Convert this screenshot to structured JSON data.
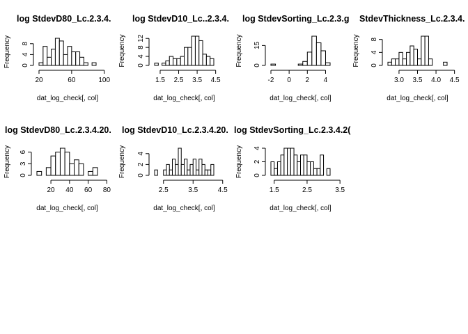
{
  "chart_data": [
    {
      "type": "bar",
      "title": "log StdevD80_Lc.2.3.4.",
      "xlabel": "dat_log_check[, col]",
      "ylabel": "Frequency",
      "bin_start": 20,
      "bin_width": 5,
      "values": [
        1,
        7,
        3,
        6,
        10,
        9,
        4,
        7,
        5,
        5,
        3,
        1,
        0,
        1
      ],
      "xticks": [
        "20",
        "60",
        "100"
      ],
      "xtick_vals": [
        20,
        60,
        100
      ],
      "yticks": [
        "0",
        "4",
        "8"
      ],
      "ytick_vals": [
        0,
        4,
        8
      ],
      "ylim": [
        0,
        10
      ]
    },
    {
      "type": "bar",
      "title": "log StdevD10_Lc..2.3.4.",
      "xlabel": "dat_log_check[, col]",
      "ylabel": "Frequency",
      "bin_start": 1.2,
      "bin_width": 0.2,
      "values": [
        1,
        0,
        1,
        2,
        4,
        3,
        3,
        4,
        8,
        8,
        13,
        13,
        11,
        5,
        4,
        3
      ],
      "xticks": [
        "1.5",
        "2.5",
        "3.5",
        "4.5"
      ],
      "xtick_vals": [
        1.5,
        2.5,
        3.5,
        4.5
      ],
      "yticks": [
        "0",
        "4",
        "8",
        "12"
      ],
      "ytick_vals": [
        0,
        4,
        8,
        12
      ],
      "ylim": [
        0,
        13
      ]
    },
    {
      "type": "bar",
      "title": "log StdevSorting_Lc.2.3.g",
      "xlabel": "dat_log_check[, col]",
      "ylabel": "Frequency",
      "bin_start": -2,
      "bin_width": 0.5,
      "values": [
        1,
        0,
        0,
        0,
        0,
        0,
        1,
        3,
        10,
        22,
        17,
        11,
        2
      ],
      "xticks": [
        "-2",
        "0",
        "2",
        "4"
      ],
      "xtick_vals": [
        -2,
        0,
        2,
        4
      ],
      "yticks": [
        "0",
        "15"
      ],
      "ytick_vals": [
        0,
        15
      ],
      "ylim": [
        0,
        22
      ]
    },
    {
      "type": "bar",
      "title": "StdevThickness_Lc.2.3.4.",
      "xlabel": "dat_log_check[, col]",
      "ylabel": "Frequency",
      "bin_start": 2.7,
      "bin_width": 0.1,
      "values": [
        1,
        2,
        2,
        4,
        2,
        4,
        6,
        5,
        2,
        9,
        9,
        2,
        0,
        0,
        0,
        1
      ],
      "xticks": [
        "3.0",
        "3.5",
        "4.0",
        "4.5"
      ],
      "xtick_vals": [
        3.0,
        3.5,
        4.0,
        4.5
      ],
      "yticks": [
        "0",
        "4",
        "8"
      ],
      "ytick_vals": [
        0,
        4,
        8
      ],
      "ylim": [
        0,
        9
      ]
    },
    {
      "type": "bar",
      "title": "log StdevD80_Lc.2.3.4.20.",
      "xlabel": "dat_log_check[, col]",
      "ylabel": "Frequency",
      "bin_start": 5,
      "bin_width": 5,
      "values": [
        1,
        0,
        2,
        5,
        6,
        7,
        6,
        3,
        4,
        3,
        0,
        1,
        2
      ],
      "xticks": [
        "20",
        "40",
        "60",
        "80"
      ],
      "xtick_vals": [
        20,
        40,
        60,
        80
      ],
      "yticks": [
        "0",
        "3",
        "6"
      ],
      "ytick_vals": [
        0,
        3,
        6
      ],
      "ylim": [
        0,
        7
      ]
    },
    {
      "type": "bar",
      "title": "log StdevD10_Lc.2.3.4.20.",
      "xlabel": "dat_log_check[, col]",
      "ylabel": "Frequency",
      "bin_start": 2.2,
      "bin_width": 0.1,
      "values": [
        1,
        0,
        0,
        1,
        2,
        1,
        3,
        2,
        5,
        2,
        3,
        1,
        2,
        3,
        1,
        3,
        2,
        1,
        1,
        2
      ],
      "xticks": [
        "2.5",
        "3.5",
        "4.5"
      ],
      "xtick_vals": [
        2.5,
        3.5,
        4.5
      ],
      "yticks": [
        "0",
        "2",
        "4"
      ],
      "ytick_vals": [
        0,
        2,
        4
      ],
      "ylim": [
        0,
        5
      ]
    },
    {
      "type": "bar",
      "title": "log StdevSorting_Lc.2.3.4.2(",
      "xlabel": "dat_log_check[, col]",
      "ylabel": "Frequency",
      "bin_start": 1.4,
      "bin_width": 0.1,
      "values": [
        2,
        1,
        2,
        3,
        4,
        4,
        4,
        3,
        2,
        3,
        3,
        2,
        2,
        1,
        1,
        3,
        0,
        1
      ],
      "xticks": [
        "1.5",
        "2.5",
        "3.5"
      ],
      "xtick_vals": [
        1.5,
        2.5,
        3.5
      ],
      "yticks": [
        "0",
        "2",
        "4"
      ],
      "ytick_vals": [
        0,
        2,
        4
      ],
      "ylim": [
        0,
        4
      ]
    }
  ]
}
